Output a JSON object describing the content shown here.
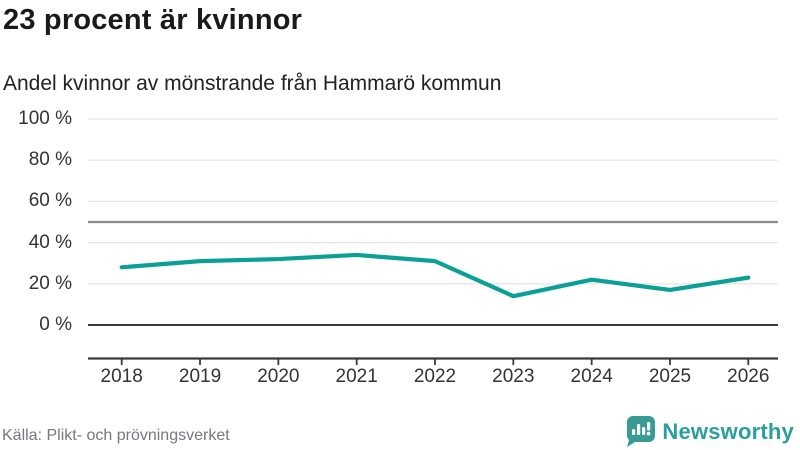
{
  "header": {
    "title": "23 procent är kvinnor",
    "subtitle": "Andel kvinnor av mönstrande från Hammarö kommun"
  },
  "chart_data": {
    "type": "line",
    "categories": [
      "2018",
      "2019",
      "2020",
      "2021",
      "2022",
      "2023",
      "2024",
      "2025",
      "2026"
    ],
    "series": [
      {
        "name": "Andel kvinnor",
        "values": [
          28,
          31,
          32,
          34,
          31,
          14,
          22,
          17,
          23
        ]
      }
    ],
    "title": "23 procent är kvinnor",
    "subtitle": "Andel kvinnor av mönstrande från Hammarö kommun",
    "xlabel": "",
    "ylabel": "",
    "ylim": [
      0,
      100
    ],
    "yticks": [
      {
        "value": 0,
        "label": "0 %"
      },
      {
        "value": 20,
        "label": "20 %"
      },
      {
        "value": 40,
        "label": "40 %"
      },
      {
        "value": 60,
        "label": "60 %"
      },
      {
        "value": 80,
        "label": "80 %"
      },
      {
        "value": 100,
        "label": "100 %"
      }
    ],
    "reference_line": 50,
    "grid": true,
    "legend_position": "none",
    "colors": {
      "line": "#0aa096",
      "grid": "#e7e7e7",
      "reference": "#8a8a8a",
      "axis": "#3a3a3a"
    }
  },
  "footer": {
    "source": "Källa: Plikt- och prövningsverket",
    "logo_text": "Newsworthy",
    "logo_color": "#3a9a94",
    "logo_text_color": "#2b9fa0"
  }
}
